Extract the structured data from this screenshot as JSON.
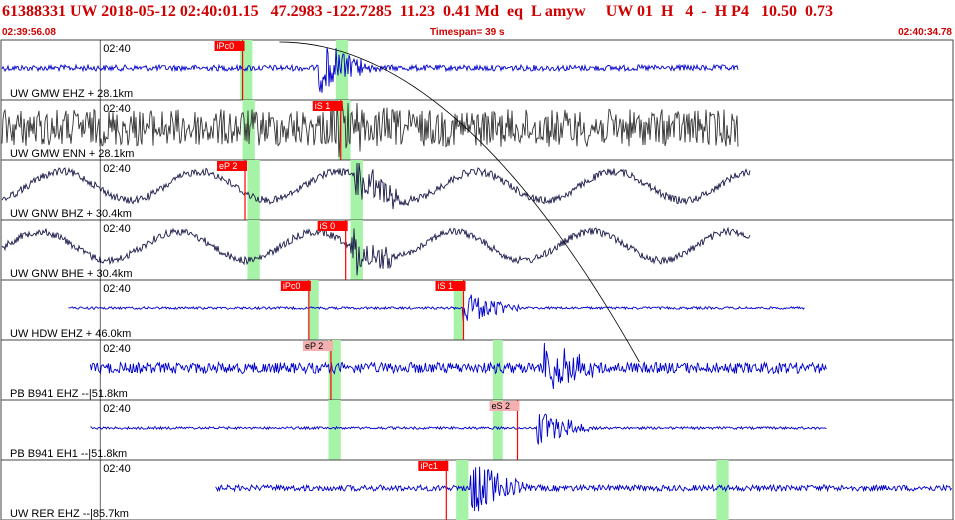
{
  "header": {
    "event_line": "61388331 UW 2018-05-12 02:40:01.15   47.2983 -122.7285  11.23  0.41 Md  eq  L amyw     UW 01  H   4  -  H P4   10.50  0.73",
    "start_time": "02:39:56.08",
    "timespan": "Timespan=  39 s",
    "end_time": "02:40:34.78"
  },
  "colors": {
    "header_text": "#d00000",
    "blue_trace": "#0000cc",
    "grey_trace": "#333333",
    "navy_trace": "#1a1a4a",
    "pick_red": "#ff0000",
    "pick_label_pink": "#f4b0b0",
    "window_green": "#a6f2a6"
  },
  "chart_data": {
    "type": "line",
    "title": "61388331 UW 2018-05-12 02:40:01.15",
    "x_unit": "s from 02:39:56.08",
    "xlim": [
      0,
      38.7
    ],
    "tick_label": "02:40",
    "traces": [
      {
        "label": "UW GMW EHZ + 28.1km",
        "color": "blue",
        "start": 0,
        "end": 30.0,
        "amp": 0.12,
        "osc": 0,
        "picks": [
          {
            "label": "iPc0",
            "t": 9.8,
            "style": "red"
          }
        ],
        "windows": [
          [
            9.7,
            10.2
          ],
          [
            13.6,
            14.1
          ]
        ],
        "event_t": 13.0
      },
      {
        "label": "UW GMW ENN + 28.1km",
        "color": "grey",
        "start": 0,
        "end": 30.0,
        "amp": 0.75,
        "osc": 0,
        "picks": [
          {
            "label": "iS 1",
            "t": 13.8,
            "style": "red"
          }
        ],
        "windows": [
          [
            9.8,
            10.3
          ],
          [
            13.7,
            14.2
          ]
        ],
        "event_t": 13.5
      },
      {
        "label": "UW GNW BHZ + 30.4km",
        "color": "navy",
        "start": 0,
        "end": 30.5,
        "amp": 0.15,
        "osc": 0.8,
        "picks": [
          {
            "label": "eP 2",
            "t": 9.9,
            "style": "red"
          }
        ],
        "windows": [
          [
            10.0,
            10.5
          ],
          [
            14.2,
            14.7
          ]
        ],
        "event_t": 14.5
      },
      {
        "label": "UW GNW BHE + 30.4km",
        "color": "navy",
        "start": 0,
        "end": 30.5,
        "amp": 0.15,
        "osc": 0.8,
        "picks": [
          {
            "label": "iS 0",
            "t": 14.0,
            "style": "red"
          }
        ],
        "windows": [
          [
            10.0,
            10.5
          ],
          [
            14.2,
            14.7
          ]
        ],
        "event_t": 14.3
      },
      {
        "label": "UW HDW EHZ + 46.0km",
        "color": "blue",
        "start": 2.7,
        "end": 32.7,
        "amp": 0.05,
        "osc": 0,
        "picks": [
          {
            "label": "iPc0",
            "t": 12.5,
            "style": "red"
          },
          {
            "label": "iS 1",
            "t": 18.8,
            "style": "red"
          }
        ],
        "windows": [
          [
            12.5,
            12.9
          ],
          [
            18.4,
            18.8
          ]
        ],
        "event_t": 18.9
      },
      {
        "label": "PB B941 EHZ --|51.8km",
        "color": "blue",
        "start": 3.6,
        "end": 33.6,
        "amp": 0.22,
        "osc": 0,
        "picks": [
          {
            "label": "eP 2",
            "t": 13.4,
            "style": "pink"
          }
        ],
        "windows": [
          [
            13.3,
            13.8
          ],
          [
            20.0,
            20.4
          ]
        ],
        "event_t": 22.2
      },
      {
        "label": "PB B941 EH1 --|51.8km",
        "color": "blue",
        "start": 3.6,
        "end": 33.6,
        "amp": 0.05,
        "osc": 0,
        "picks": [
          {
            "label": "eS 2",
            "t": 21.0,
            "style": "pink"
          }
        ],
        "windows": [
          [
            13.3,
            13.8
          ],
          [
            20.0,
            20.4
          ]
        ],
        "event_t": 21.9
      },
      {
        "label": "UW RER EHZ --|85.7km",
        "color": "blue",
        "start": 8.7,
        "end": 38.7,
        "amp": 0.12,
        "osc": 0,
        "picks": [
          {
            "label": "iPc1",
            "t": 18.1,
            "style": "red"
          }
        ],
        "windows": [
          [
            18.5,
            19.0
          ],
          [
            29.1,
            29.6
          ]
        ],
        "event_t": 19.2
      }
    ]
  }
}
